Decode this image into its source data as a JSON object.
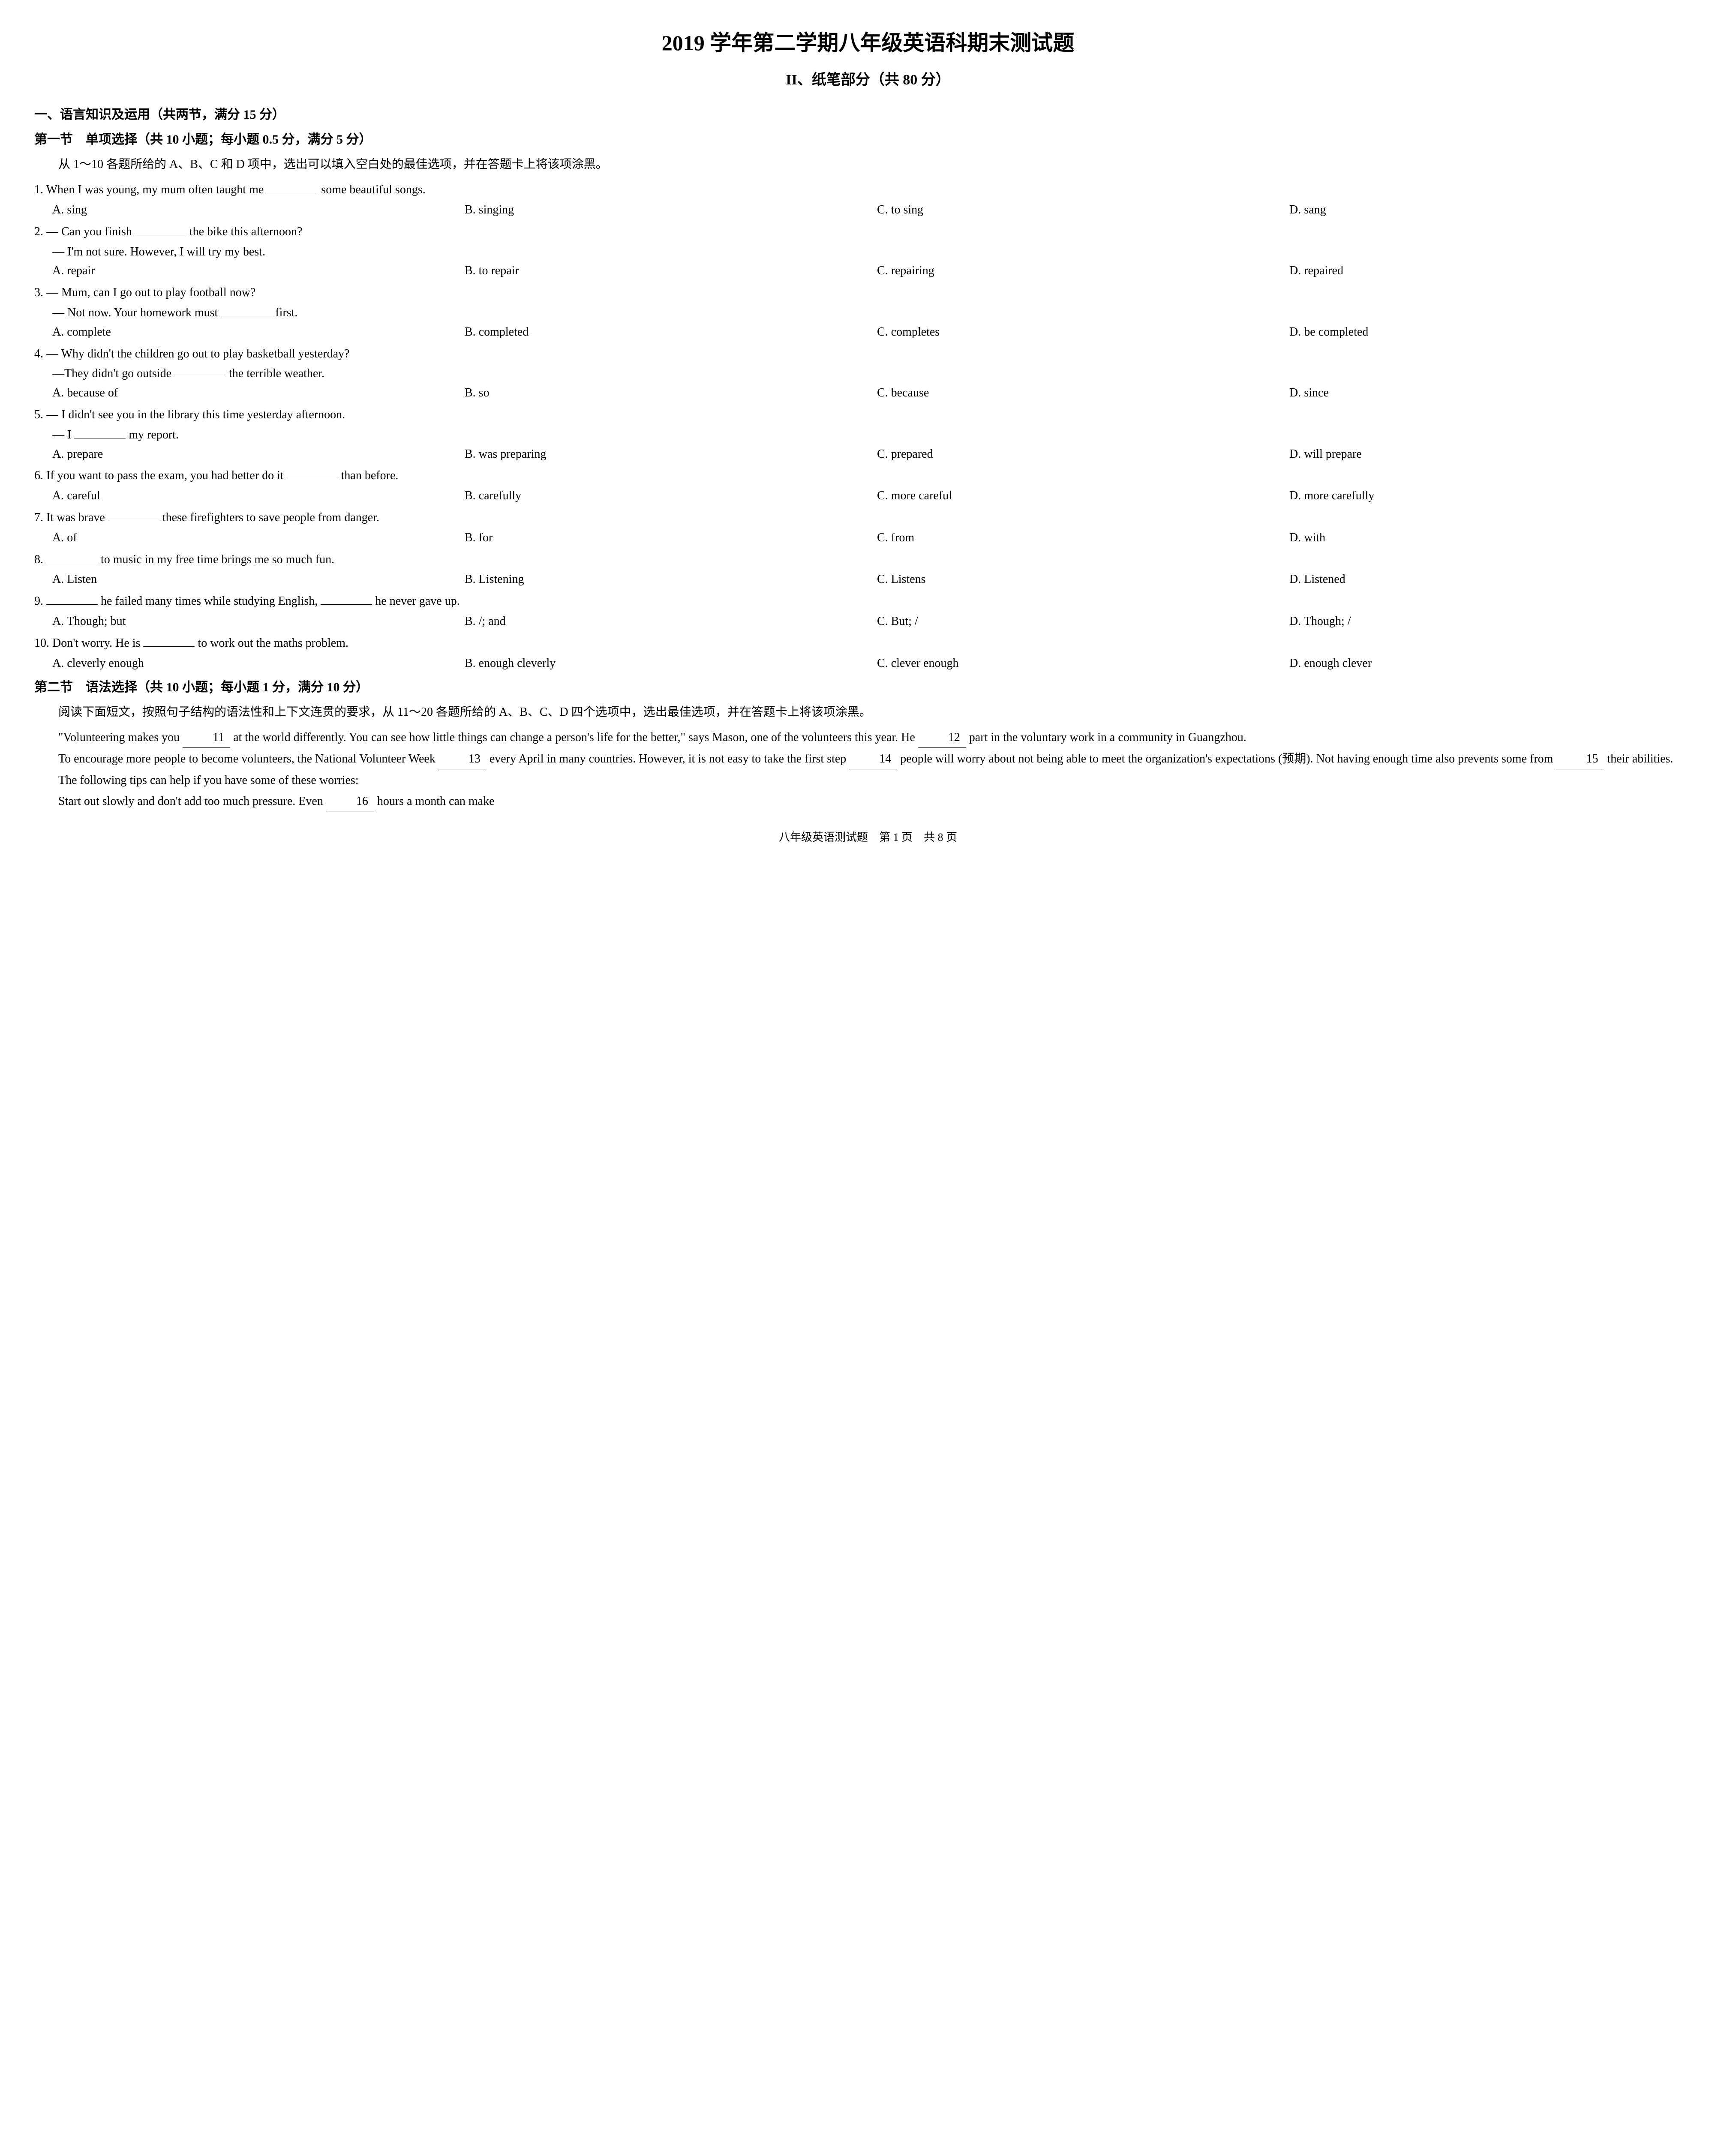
{
  "title": "2019 学年第二学期八年级英语科期末测试题",
  "subtitle": "II、纸笔部分（共 80 分）",
  "section1": {
    "heading": "一、语言知识及运用（共两节，满分 15 分）",
    "part1": {
      "heading": "第一节　单项选择（共 10 小题；每小题 0.5 分，满分 5 分）",
      "instructions": "从 1～10 各题所给的 A、B、C 和 D 项中，选出可以填入空白处的最佳选项，并在答题卡上将该项涂黑。",
      "questions": [
        {
          "num": "1.",
          "lines": [
            "When I was young, my mum often taught me ",
            " some beautiful songs."
          ],
          "blanks": [
            true
          ],
          "choices": {
            "A": "sing",
            "B": "singing",
            "C": "to sing",
            "D": "sang"
          }
        },
        {
          "num": "2.",
          "lines": [
            "— Can you finish ",
            " the bike this afternoon?"
          ],
          "blanks": [
            true
          ],
          "extra": [
            "— I'm not sure. However, I will try my best."
          ],
          "choices": {
            "A": "repair",
            "B": "to repair",
            "C": "repairing",
            "D": "repaired"
          }
        },
        {
          "num": "3.",
          "lines": [
            "— Mum, can I go out to play football now?"
          ],
          "blanks": [],
          "extra2": {
            "pre": "— Not now. Your homework must ",
            "post": " first."
          },
          "choices": {
            "A": "complete",
            "B": "completed",
            "C": "completes",
            "D": "be completed"
          }
        },
        {
          "num": "4.",
          "lines": [
            "— Why didn't the children go out to play basketball yesterday?"
          ],
          "blanks": [],
          "extra2": {
            "pre": "—They didn't go outside ",
            "post": " the terrible weather."
          },
          "choices": {
            "A": "because of",
            "B": "so",
            "C": "because",
            "D": "since"
          }
        },
        {
          "num": "5.",
          "lines": [
            "— I didn't see you in the library this time yesterday afternoon."
          ],
          "blanks": [],
          "extra2": {
            "pre": "— I ",
            "post": " my report."
          },
          "choices": {
            "A": "prepare",
            "B": "was preparing",
            "C": "prepared",
            "D": "will prepare"
          }
        },
        {
          "num": "6.",
          "lines": [
            "If you want to pass the exam, you had better do it ",
            " than before."
          ],
          "blanks": [
            true
          ],
          "choices": {
            "A": "careful",
            "B": "carefully",
            "C": "more careful",
            "D": "more carefully"
          }
        },
        {
          "num": "7.",
          "lines": [
            "It was brave ",
            " these firefighters to save people from danger."
          ],
          "blanks": [
            true
          ],
          "choices": {
            "A": "of",
            "B": "for",
            "C": "from",
            "D": "with"
          }
        },
        {
          "num": "8.",
          "lines": [
            "",
            " to music in my free time brings me so much fun."
          ],
          "blanks": [
            true
          ],
          "choices": {
            "A": "Listen",
            "B": "Listening",
            "C": "Listens",
            "D": "Listened"
          }
        },
        {
          "num": "9.",
          "lines": [
            "",
            " he failed many times while studying English, ",
            " he never gave up."
          ],
          "blanks": [
            true,
            true
          ],
          "choices": {
            "A": "Though; but",
            "B": "/; and",
            "C": "But; /",
            "D": "Though; /"
          }
        },
        {
          "num": "10.",
          "lines": [
            "Don't worry. He is ",
            " to work out the maths problem."
          ],
          "blanks": [
            true
          ],
          "choices": {
            "A": "cleverly enough",
            "B": "enough cleverly",
            "C": "clever enough",
            "D": "enough clever"
          }
        }
      ]
    },
    "part2": {
      "heading": "第二节　语法选择（共 10 小题；每小题 1 分，满分 10 分）",
      "instructions": "阅读下面短文，按照句子结构的语法性和上下文连贯的要求，从 11～20 各题所给的 A、B、C、D 四个选项中，选出最佳选项，并在答题卡上将该项涂黑。",
      "passage": {
        "p1a": "\"Volunteering makes you ",
        "b11": "11",
        "p1b": " at the world differently. You can see how little things can change a person's life for the better,\" says Mason, one of the volunteers this year. He ",
        "b12": "12",
        "p1c": " part in the voluntary work in a community in Guangzhou.",
        "p2a": "To encourage more people to become volunteers, the National Volunteer Week ",
        "b13": "13",
        "p2b": " every April in many countries. However, it is not easy to take the first step ",
        "b14": "14",
        "p2c": " people will worry about not being able to meet the organization's expectations (预期). Not having enough time also prevents some from ",
        "b15": "15",
        "p2d": " their abilities.",
        "p3": "The following tips can help if you have some of these worries:",
        "p4a": "Start out slowly and don't add too much pressure. Even ",
        "b16": "16",
        "p4b": " hours a month can make"
      }
    }
  },
  "footer": "八年级英语测试题　第 1 页　共 8 页",
  "style": {
    "background_color": "#ffffff",
    "text_color": "#000000",
    "title_fontsize": 50,
    "subtitle_fontsize": 34,
    "body_fontsize": 28,
    "heading_fontsize": 30,
    "footer_fontsize": 26,
    "font_family": "Times New Roman, SimSun, serif"
  }
}
